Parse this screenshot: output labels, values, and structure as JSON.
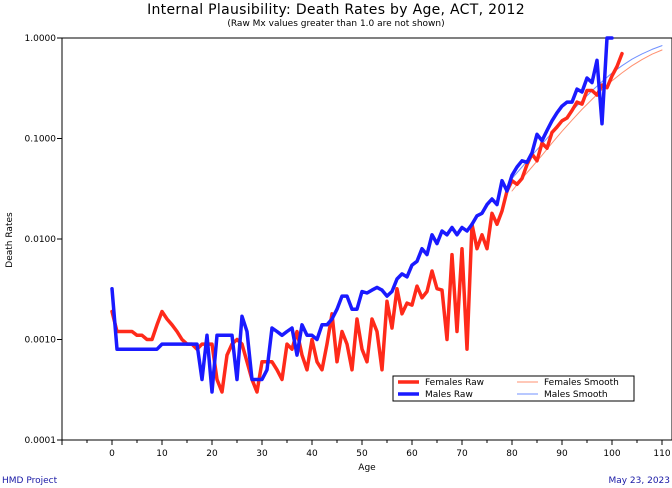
{
  "chart_data": {
    "type": "line",
    "title": "Internal Plausibility: Death Rates by Age, ACT, 2012",
    "subtitle": "(Raw Mx values greater than 1.0 are not shown)",
    "xlabel": "Age",
    "ylabel": "Death Rates",
    "x_scale": "linear",
    "y_scale": "log",
    "xlim": [
      -10,
      112
    ],
    "ylim": [
      0.0001,
      1.0
    ],
    "x_ticks": [
      0,
      10,
      20,
      30,
      40,
      50,
      60,
      70,
      80,
      90,
      100,
      110
    ],
    "y_ticks": [
      0.0001,
      0.001,
      0.01,
      0.1,
      1.0
    ],
    "y_tick_labels": [
      "0.0001",
      "0.0010",
      "0.0100",
      "0.1000",
      "1.0000"
    ],
    "grid": false,
    "legend_position": "bottom-right",
    "series": [
      {
        "name": "Females Raw",
        "color": "#ff2a1a",
        "style": "thick",
        "x": [
          0,
          1,
          2,
          3,
          4,
          5,
          6,
          7,
          8,
          9,
          10,
          11,
          12,
          13,
          14,
          15,
          16,
          17,
          18,
          19,
          20,
          21,
          22,
          23,
          24,
          25,
          26,
          27,
          28,
          29,
          30,
          31,
          32,
          33,
          34,
          35,
          36,
          37,
          38,
          39,
          40,
          41,
          42,
          43,
          44,
          45,
          46,
          47,
          48,
          49,
          50,
          51,
          52,
          53,
          54,
          55,
          56,
          57,
          58,
          59,
          60,
          61,
          62,
          63,
          64,
          65,
          66,
          67,
          68,
          69,
          70,
          71,
          72,
          73,
          74,
          75,
          76,
          77,
          78,
          79,
          80,
          81,
          82,
          83,
          84,
          85,
          86,
          87,
          88,
          89,
          90,
          91,
          92,
          93,
          94,
          95,
          96,
          97,
          98,
          99,
          100,
          101,
          102
        ],
        "values": [
          0.0019,
          0.0012,
          0.0012,
          0.0012,
          0.0012,
          0.0011,
          0.0011,
          0.001,
          0.001,
          0.0014,
          0.0019,
          0.0016,
          0.0014,
          0.0012,
          0.001,
          0.0009,
          0.0009,
          0.0008,
          0.0009,
          0.0009,
          0.0009,
          0.0004,
          0.0003,
          0.0007,
          0.0009,
          0.001,
          0.0009,
          0.0006,
          0.0004,
          0.0003,
          0.0006,
          0.0006,
          0.0006,
          0.0005,
          0.0004,
          0.0009,
          0.0008,
          0.0012,
          0.0007,
          0.0005,
          0.001,
          0.0006,
          0.0005,
          0.0009,
          0.0018,
          0.0006,
          0.0012,
          0.0009,
          0.0005,
          0.0016,
          0.0008,
          0.0006,
          0.0016,
          0.0012,
          0.0005,
          0.0024,
          0.0013,
          0.0032,
          0.0018,
          0.0023,
          0.0022,
          0.0034,
          0.0026,
          0.003,
          0.0048,
          0.0032,
          0.0031,
          0.001,
          0.007,
          0.0012,
          0.008,
          0.0008,
          0.014,
          0.008,
          0.011,
          0.008,
          0.018,
          0.014,
          0.019,
          0.03,
          0.038,
          0.035,
          0.04,
          0.055,
          0.07,
          0.06,
          0.09,
          0.08,
          0.115,
          0.13,
          0.15,
          0.16,
          0.19,
          0.23,
          0.22,
          0.3,
          0.3,
          0.27,
          0.34,
          0.32,
          0.42,
          0.52,
          0.7
        ]
      },
      {
        "name": "Males Raw",
        "color": "#1a1aff",
        "style": "thick",
        "x": [
          0,
          1,
          2,
          3,
          4,
          5,
          6,
          7,
          8,
          9,
          10,
          11,
          12,
          13,
          14,
          15,
          16,
          17,
          18,
          19,
          20,
          21,
          22,
          23,
          24,
          25,
          26,
          27,
          28,
          29,
          30,
          31,
          32,
          33,
          34,
          35,
          36,
          37,
          38,
          39,
          40,
          41,
          42,
          43,
          44,
          45,
          46,
          47,
          48,
          49,
          50,
          51,
          52,
          53,
          54,
          55,
          56,
          57,
          58,
          59,
          60,
          61,
          62,
          63,
          64,
          65,
          66,
          67,
          68,
          69,
          70,
          71,
          72,
          73,
          74,
          75,
          76,
          77,
          78,
          79,
          80,
          81,
          82,
          83,
          84,
          85,
          86,
          87,
          88,
          89,
          90,
          91,
          92,
          93,
          94,
          95,
          96,
          97,
          98,
          99,
          100
        ],
        "values": [
          0.0032,
          0.0008,
          0.0008,
          0.0008,
          0.0008,
          0.0008,
          0.0008,
          0.0008,
          0.0008,
          0.0008,
          0.0009,
          0.0009,
          0.0009,
          0.0009,
          0.0009,
          0.0009,
          0.0009,
          0.0009,
          0.0004,
          0.0011,
          0.0003,
          0.0011,
          0.0011,
          0.0011,
          0.0011,
          0.0004,
          0.0017,
          0.0012,
          0.0004,
          0.0004,
          0.0004,
          0.0005,
          0.0013,
          0.0012,
          0.0011,
          0.0012,
          0.0013,
          0.0007,
          0.0014,
          0.0011,
          0.0011,
          0.001,
          0.0014,
          0.0014,
          0.0016,
          0.002,
          0.0027,
          0.0027,
          0.002,
          0.002,
          0.003,
          0.0029,
          0.0031,
          0.0033,
          0.0031,
          0.0027,
          0.003,
          0.004,
          0.0045,
          0.0042,
          0.0055,
          0.006,
          0.008,
          0.007,
          0.011,
          0.009,
          0.012,
          0.011,
          0.013,
          0.011,
          0.013,
          0.012,
          0.014,
          0.017,
          0.018,
          0.022,
          0.025,
          0.022,
          0.038,
          0.03,
          0.043,
          0.052,
          0.06,
          0.058,
          0.072,
          0.11,
          0.095,
          0.12,
          0.15,
          0.18,
          0.21,
          0.23,
          0.23,
          0.31,
          0.29,
          0.4,
          0.36,
          0.6,
          0.14,
          1.0,
          1.0
        ]
      },
      {
        "name": "Females Smooth",
        "color": "#ff9070",
        "style": "thin",
        "x": [
          80,
          82,
          84,
          86,
          88,
          90,
          92,
          94,
          96,
          98,
          100,
          102,
          104,
          106,
          108,
          110
        ],
        "values": [
          0.03,
          0.04,
          0.052,
          0.068,
          0.09,
          0.118,
          0.152,
          0.195,
          0.245,
          0.305,
          0.375,
          0.45,
          0.53,
          0.61,
          0.69,
          0.76
        ]
      },
      {
        "name": "Males Smooth",
        "color": "#7090ff",
        "style": "thin",
        "x": [
          80,
          82,
          84,
          86,
          88,
          90,
          92,
          94,
          96,
          98,
          100,
          102,
          104,
          106,
          108,
          110
        ],
        "values": [
          0.04,
          0.052,
          0.068,
          0.088,
          0.114,
          0.147,
          0.188,
          0.238,
          0.298,
          0.368,
          0.448,
          0.53,
          0.615,
          0.695,
          0.77,
          0.84
        ]
      }
    ]
  },
  "footer": {
    "left": "HMD Project",
    "right": "May 23, 2023"
  }
}
